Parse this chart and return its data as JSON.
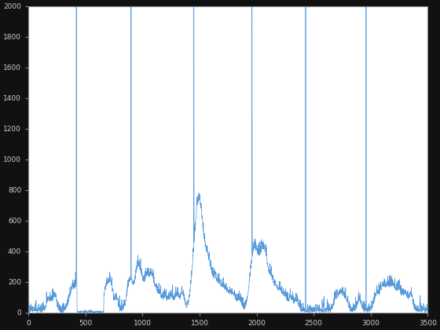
{
  "xlim": [
    0,
    3500
  ],
  "ylim": [
    0,
    2000
  ],
  "xticks": [
    0,
    500,
    1000,
    1500,
    2000,
    2500,
    3000,
    3500
  ],
  "yticks": [
    0,
    200,
    400,
    600,
    800,
    1000,
    1200,
    1400,
    1600,
    1800,
    2000
  ],
  "line_color": "#5599dd",
  "spike_positions": [
    420,
    900,
    1450,
    1960,
    2430,
    2960
  ],
  "spike_height": 2000,
  "n_points": 3500,
  "background_color": "#ffffff",
  "figure_facecolor": "#111111",
  "tick_label_color": "#cccccc",
  "tick_color": "#888888",
  "spine_color": "#888888"
}
